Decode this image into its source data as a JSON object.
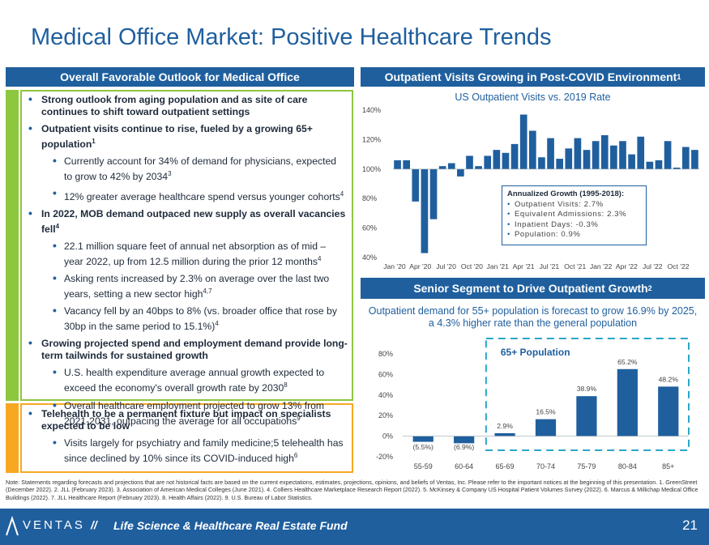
{
  "page": {
    "title": "Medical Office Market: Positive Healthcare Trends",
    "page_number": "21"
  },
  "left": {
    "header": "Overall Favorable Outlook for Medical Office",
    "bullets": [
      {
        "level": 1,
        "text": "Strong outlook from aging population and as site of care continues to shift toward outpatient settings",
        "sup": ""
      },
      {
        "level": 1,
        "text": "Outpatient visits continue to rise, fueled by a growing 65+ population",
        "sup": "1"
      },
      {
        "level": 2,
        "text": "Currently account for 34% of demand for physicians, expected to grow to 42% by 2034",
        "sup": "3"
      },
      {
        "level": 2,
        "text": "12% greater average healthcare spend versus younger cohorts",
        "sup": "4"
      },
      {
        "level": 1,
        "text": "In 2022, MOB demand outpaced new supply as overall vacancies fell",
        "sup": "4"
      },
      {
        "level": 2,
        "text": "22.1 million square feet of annual net absorption as of mid – year 2022, up from 12.5 million during the prior 12 months",
        "sup": "4"
      },
      {
        "level": 2,
        "text": "Asking rents increased by 2.3% on average over the last two years, setting a new sector high",
        "sup": "4,7"
      },
      {
        "level": 2,
        "text": "Vacancy fell by an 40bps to 8% (vs. broader office that rose by 30bp in the same period to 15.1%)",
        "sup": "4"
      },
      {
        "level": 1,
        "text": "Growing projected spend and employment demand provide long-term tailwinds for sustained growth",
        "sup": ""
      },
      {
        "level": 2,
        "text": "U.S. health expenditure average annual growth expected to exceed the economy's overall growth rate by 2030",
        "sup": "8"
      },
      {
        "level": 2,
        "text": "Overall healthcare employment projected to grow 13% from 2021-2031, outpacing the average for all occupations",
        "sup": "9"
      }
    ],
    "telehealth": [
      {
        "level": 1,
        "text": "Telehealth to be a permanent fixture but impact on specialists expected to be low",
        "sup": ""
      },
      {
        "level": 2,
        "text": "Visits largely for psychiatry and family medicine;5 telehealth has since declined by 10% since its COVID-induced high",
        "sup": "6"
      }
    ]
  },
  "right_top": {
    "header": "Outpatient Visits Growing in Post-COVID Environment",
    "header_sup": "1",
    "legend": {
      "title": "Annualized Growth (1995-2018):",
      "items": [
        "Outpatient Visits: 2.7%",
        "Equivalent Admissions: 2.3%",
        "Inpatient Days: -0.3%",
        "Population: 0.9%"
      ]
    }
  },
  "right_bottom": {
    "header": "Senior Segment to Drive Outpatient Growth",
    "header_sup": "2",
    "subtitle_line1": "Outpatient demand for 55+ population is forecast to grow 16.9% by 2025,",
    "subtitle_line2": "a 4.3% higher rate than the general population",
    "group_label": "65+ Population"
  },
  "footnote": "Note: Statements regarding forecasts and projections that are not historical facts are based on the current expectations, estimates, projections, opinions, and beliefs of Ventas, Inc. Please refer to the important notices at the beginning of this presentation. 1. GreenStreet (December 2022). 2. JLL (February 2023). 3. Association of American Medical Colleges (June 2021). 4. Colliers Healthcare Marketplace Research Report (2022). 5. McKinsey & Company US Hospital Patient Volumes Survey (2022). 6. Marcus & Millichap Medical Office Buildings (2022). 7. JLL Healthcare Report (February 2023). 8. Health Affairs (2022). 9. U.S. Bureau of Labor Statistics.",
  "footer": {
    "logo_text": "VENTAS",
    "separator": "//",
    "fund": "Life Science & Healthcare Real Estate Fund"
  },
  "colors": {
    "brand_blue": "#1f5f9e",
    "green": "#8dc63f",
    "orange": "#f7a823"
  },
  "chart_data": [
    {
      "type": "bar",
      "title": "US Outpatient Visits vs. 2019 Rate",
      "x_tick_labels": [
        "Jan '20",
        "Apr '20",
        "Jul '20",
        "Oct '20",
        "Jan '21",
        "Apr '21",
        "Jul '21",
        "Oct '21",
        "Jan '22",
        "Apr '22",
        "Jul '22",
        "Oct '22"
      ],
      "ylim": [
        40,
        140
      ],
      "y_ticks": [
        "40%",
        "60%",
        "80%",
        "100%",
        "120%",
        "140%"
      ],
      "baseline": 100,
      "values": [
        106,
        106,
        78,
        43,
        66,
        102,
        104,
        95,
        109,
        102,
        109,
        113,
        111,
        117,
        137,
        126,
        108,
        121,
        107,
        114,
        121,
        113,
        119,
        123,
        116,
        119,
        110,
        122,
        105,
        106,
        119,
        101,
        115,
        113
      ]
    },
    {
      "type": "bar",
      "categories": [
        "55-59",
        "60-64",
        "65-69",
        "70-74",
        "75-79",
        "80-84",
        "85+"
      ],
      "values": [
        -5.5,
        -6.9,
        2.9,
        16.5,
        38.9,
        65.2,
        48.2
      ],
      "value_labels": [
        "(5.5%)",
        "(6.9%)",
        "2.9%",
        "16.5%",
        "38.9%",
        "65.2%",
        "48.2%"
      ],
      "ylim": [
        -20,
        80
      ],
      "y_ticks": [
        "-20%",
        "0%",
        "20%",
        "40%",
        "60%",
        "80%"
      ]
    }
  ]
}
